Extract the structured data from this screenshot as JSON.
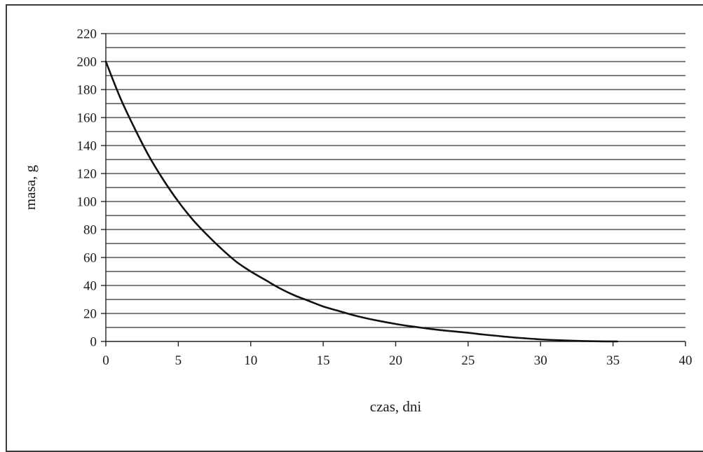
{
  "chart_data": {
    "type": "line",
    "title": "",
    "xlabel": "czas, dni",
    "ylabel": "masa, g",
    "xlim": [
      0,
      40
    ],
    "ylim": [
      0,
      220
    ],
    "x_ticks": [
      "0",
      "5",
      "10",
      "15",
      "20",
      "25",
      "30",
      "35",
      "40"
    ],
    "y_ticks": [
      "0",
      "20",
      "40",
      "60",
      "80",
      "100",
      "120",
      "140",
      "160",
      "180",
      "200",
      "220"
    ],
    "grid": "horizontal",
    "minor_gridline_step": 10,
    "legend": "none",
    "line_color": "#111111",
    "grid_color": "#333333",
    "series": [
      {
        "x": [
          0,
          1,
          2,
          3,
          4,
          5,
          6,
          7,
          8,
          9,
          10,
          11,
          12,
          13,
          14,
          15,
          16,
          17,
          18,
          19,
          20,
          21,
          22,
          23,
          24,
          25,
          26,
          27,
          28,
          29,
          30,
          31,
          32,
          33,
          34,
          35.3
        ],
        "values": [
          200,
          174,
          152,
          132,
          115,
          100,
          87,
          76,
          66,
          57,
          50,
          44,
          38,
          33,
          29,
          25,
          22,
          19,
          16.5,
          14.4,
          12.5,
          10.9,
          9.5,
          8.2,
          7.2,
          6.2,
          5,
          4,
          3,
          2.2,
          1.5,
          1,
          0.6,
          0.3,
          0.1,
          0
        ]
      }
    ]
  }
}
